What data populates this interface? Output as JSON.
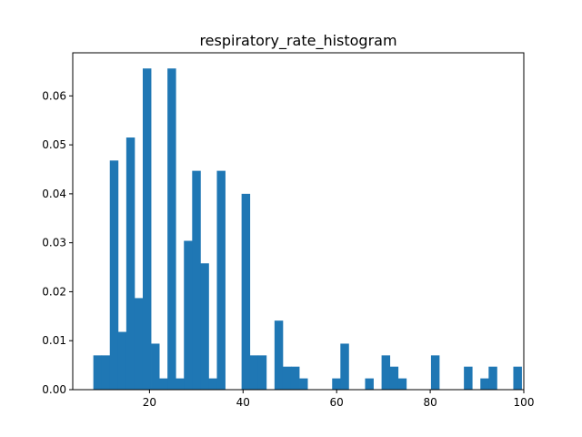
{
  "chart_data": {
    "type": "bar",
    "title": "respiratory_rate_histogram",
    "xlabel": "",
    "ylabel": "",
    "xlim": [
      3.6,
      100.0
    ],
    "ylim": [
      0,
      0.0688
    ],
    "xticks": [
      20,
      40,
      60,
      80,
      100
    ],
    "yticks": [
      0.0,
      0.01,
      0.02,
      0.03,
      0.04,
      0.05,
      0.06
    ],
    "ytick_labels": [
      "0.00",
      "0.01",
      "0.02",
      "0.03",
      "0.04",
      "0.05",
      "0.06"
    ],
    "grid": false,
    "legend": "none",
    "bar_color": "#1f77b4",
    "bin_start": 8.0,
    "bin_width": 1.76,
    "values": [
      0.007,
      0.007,
      0.0468,
      0.0118,
      0.0515,
      0.0187,
      0.0656,
      0.0094,
      0.0023,
      0.0656,
      0.0023,
      0.0304,
      0.0447,
      0.0258,
      0.0023,
      0.0447,
      0,
      0,
      0.04,
      0.007,
      0.007,
      0,
      0.0141,
      0.0047,
      0.0047,
      0.0023,
      0,
      0,
      0,
      0.0023,
      0.0094,
      0,
      0,
      0.0023,
      0,
      0.007,
      0.0047,
      0.0023,
      0,
      0,
      0,
      0.007,
      0,
      0,
      0,
      0.0047,
      0,
      0.0023,
      0.0047,
      0,
      0,
      0.0047
    ]
  }
}
